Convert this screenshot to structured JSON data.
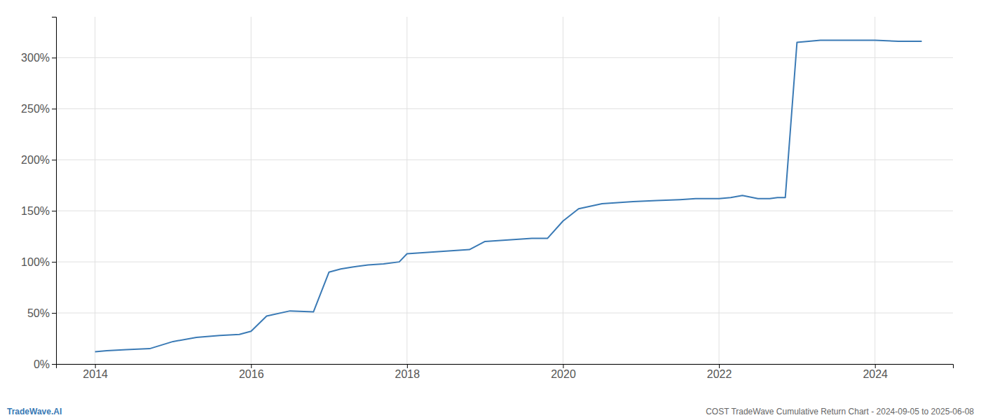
{
  "chart_data": {
    "type": "line",
    "title": "COST TradeWave Cumulative Return Chart - 2024-09-05 to 2025-06-08",
    "annotations": [
      "TradeWave.AI"
    ],
    "color": "#3a7ab5",
    "grid": true,
    "x": [
      2014.0,
      2014.15,
      2014.4,
      2014.7,
      2015.0,
      2015.3,
      2015.6,
      2015.85,
      2016.0,
      2016.2,
      2016.5,
      2016.8,
      2017.0,
      2017.15,
      2017.3,
      2017.5,
      2017.7,
      2017.9,
      2018.0,
      2018.2,
      2018.4,
      2018.6,
      2018.8,
      2019.0,
      2019.2,
      2019.4,
      2019.6,
      2019.8,
      2020.0,
      2020.2,
      2020.5,
      2020.7,
      2020.9,
      2021.2,
      2021.5,
      2021.7,
      2022.0,
      2022.15,
      2022.3,
      2022.5,
      2022.65,
      2022.75,
      2022.85,
      2023.0,
      2023.3,
      2023.6,
      2023.9,
      2024.0,
      2024.3,
      2024.6
    ],
    "values": [
      12,
      13,
      14,
      15,
      22,
      26,
      28,
      29,
      32,
      47,
      52,
      51,
      90,
      93,
      95,
      97,
      98,
      100,
      108,
      109,
      110,
      111,
      112,
      120,
      121,
      122,
      123,
      123,
      140,
      152,
      157,
      158,
      159,
      160,
      161,
      162,
      162,
      163,
      165,
      162,
      162,
      163,
      163,
      315,
      317,
      317,
      317,
      317,
      316,
      316
    ],
    "xlim": [
      2013.5,
      2025.0
    ],
    "ylim": [
      0,
      340
    ],
    "xticks": [
      2014,
      2016,
      2018,
      2020,
      2022,
      2024
    ],
    "yticks": [
      {
        "value": 0,
        "label": "0%"
      },
      {
        "value": 50,
        "label": "50%"
      },
      {
        "value": 100,
        "label": "100%"
      },
      {
        "value": 150,
        "label": "150%"
      },
      {
        "value": 200,
        "label": "200%"
      },
      {
        "value": 250,
        "label": "250%"
      },
      {
        "value": 300,
        "label": "300%"
      }
    ]
  }
}
